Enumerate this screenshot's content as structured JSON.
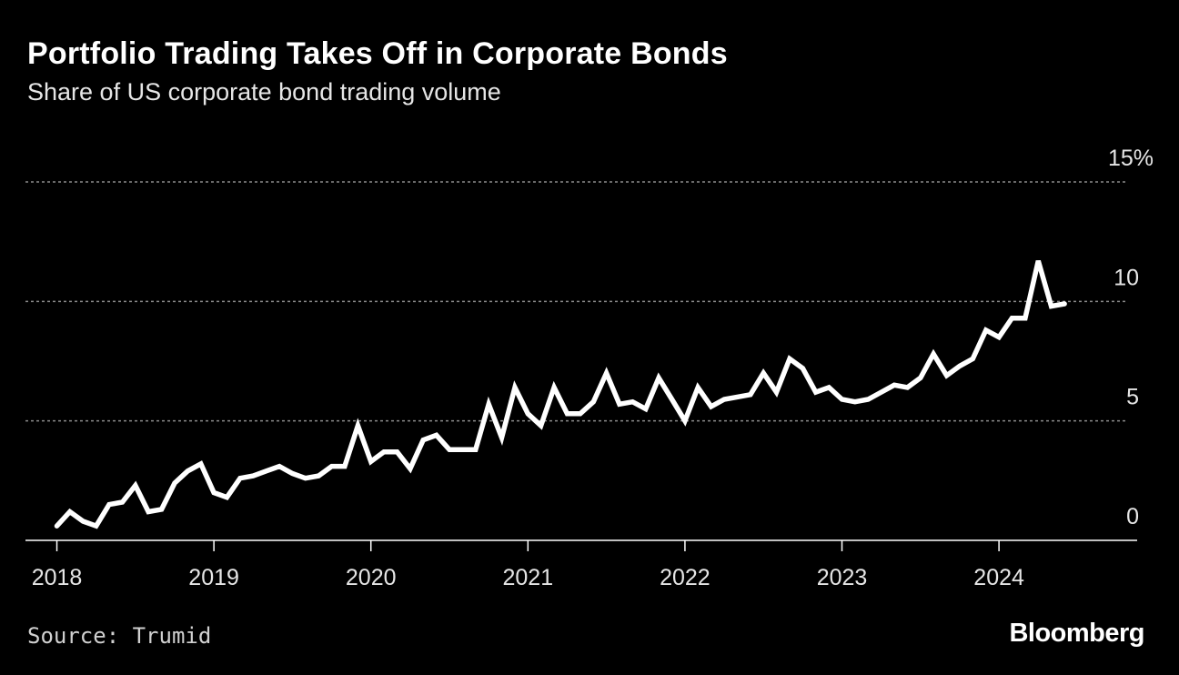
{
  "header": {
    "title": "Portfolio Trading Takes Off in Corporate Bonds",
    "subtitle": "Share of US corporate bond trading volume"
  },
  "footer": {
    "source": "Source: Trumid",
    "brand": "Bloomberg"
  },
  "colors": {
    "background": "#000000",
    "line": "#ffffff",
    "grid": "#8a8a8a",
    "text": "#ffffff"
  },
  "chart_data": {
    "type": "line",
    "title": "Portfolio Trading Takes Off in Corporate Bonds",
    "subtitle": "Share of US corporate bond trading volume",
    "xlabel": "",
    "ylabel": "",
    "x_ticks": [
      "2018",
      "2019",
      "2020",
      "2021",
      "2022",
      "2023",
      "2024"
    ],
    "y_ticks": [
      "0",
      "5",
      "10",
      "15%"
    ],
    "y_tick_values": [
      0,
      5,
      10,
      15
    ],
    "ylim": [
      0,
      15
    ],
    "xlim": [
      2017.8,
      2024.88
    ],
    "grid": "horizontal dotted at 5, 10, 15",
    "legend": "none",
    "series": [
      {
        "x": [
          2018.0,
          2018.083,
          2018.167,
          2018.25,
          2018.333,
          2018.417,
          2018.5,
          2018.583,
          2018.667,
          2018.75,
          2018.833,
          2018.917,
          2019.0,
          2019.083,
          2019.167,
          2019.25,
          2019.333,
          2019.417,
          2019.5,
          2019.583,
          2019.667,
          2019.75,
          2019.833,
          2019.917,
          2020.0,
          2020.083,
          2020.167,
          2020.25,
          2020.333,
          2020.417,
          2020.5,
          2020.583,
          2020.667,
          2020.75,
          2020.833,
          2020.917,
          2021.0,
          2021.083,
          2021.167,
          2021.25,
          2021.333,
          2021.417,
          2021.5,
          2021.583,
          2021.667,
          2021.75,
          2021.833,
          2021.917,
          2022.0,
          2022.083,
          2022.167,
          2022.25,
          2022.333,
          2022.417,
          2022.5,
          2022.583,
          2022.667,
          2022.75,
          2022.833,
          2022.917,
          2023.0,
          2023.083,
          2023.167,
          2023.25,
          2023.333,
          2023.417,
          2023.5,
          2023.583,
          2023.667,
          2023.75,
          2023.833,
          2023.917,
          2024.0,
          2024.083,
          2024.167,
          2024.25,
          2024.333,
          2024.417
        ],
        "values": [
          0.6,
          1.2,
          0.8,
          0.6,
          1.5,
          1.6,
          2.3,
          1.2,
          1.3,
          2.4,
          2.9,
          3.2,
          2.0,
          1.8,
          2.6,
          2.7,
          2.9,
          3.1,
          2.8,
          2.6,
          2.7,
          3.1,
          3.1,
          4.8,
          3.3,
          3.7,
          3.7,
          3.0,
          4.2,
          4.4,
          3.8,
          3.8,
          3.8,
          5.7,
          4.3,
          6.4,
          5.3,
          4.8,
          6.4,
          5.3,
          5.3,
          5.8,
          7.0,
          5.7,
          5.8,
          5.5,
          6.8,
          5.9,
          5.0,
          6.4,
          5.6,
          5.9,
          6.0,
          6.1,
          7.0,
          6.2,
          7.6,
          7.2,
          6.2,
          6.4,
          5.9,
          5.8,
          5.9,
          6.2,
          6.5,
          6.4,
          6.8,
          7.8,
          6.9,
          7.3,
          7.6,
          8.8,
          8.5,
          9.3,
          9.3,
          11.7,
          9.8,
          9.9
        ]
      }
    ]
  }
}
